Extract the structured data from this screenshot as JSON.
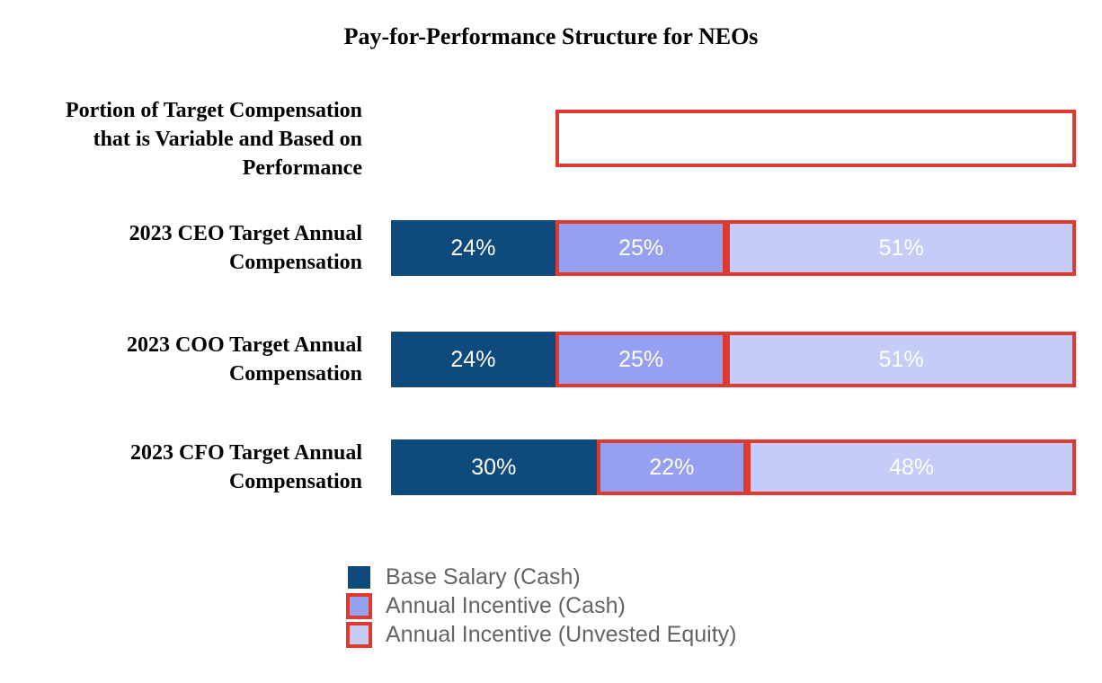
{
  "title": "Pay-for-Performance Structure for NEOs",
  "colors": {
    "navy": "#0E4A7C",
    "mid": "#95A1F0",
    "light": "#C5CCF7",
    "red": "#E03A30",
    "legendText": "#636363"
  },
  "annotation_row": {
    "label_lines": [
      "Portion of Target Compensation",
      "that is Variable and Based on",
      "Performance"
    ],
    "box_left_pct": 24,
    "box_width_pct": 76
  },
  "bars": [
    {
      "label_lines": [
        "2023 CEO Target Annual",
        "Compensation"
      ],
      "segments": [
        {
          "text": "24%",
          "pct": 24
        },
        {
          "text": "25%",
          "pct": 25
        },
        {
          "text": "51%",
          "pct": 51
        }
      ]
    },
    {
      "label_lines": [
        "2023 COO Target Annual",
        "Compensation"
      ],
      "segments": [
        {
          "text": "24%",
          "pct": 24
        },
        {
          "text": "25%",
          "pct": 25
        },
        {
          "text": "51%",
          "pct": 51
        }
      ]
    },
    {
      "label_lines": [
        "2023 CFO Target Annual",
        "Compensation"
      ],
      "segments": [
        {
          "text": "30%",
          "pct": 30
        },
        {
          "text": "22%",
          "pct": 22
        },
        {
          "text": "48%",
          "pct": 48
        }
      ]
    }
  ],
  "legend": {
    "items": [
      {
        "label": "Base Salary (Cash)"
      },
      {
        "label": "Annual Incentive (Cash)"
      },
      {
        "label": "Annual Incentive (Unvested Equity)"
      }
    ]
  },
  "chart_data": {
    "type": "bar",
    "orientation": "horizontal-stacked",
    "title": "Pay-for-Performance Structure for NEOs",
    "categories": [
      "2023 CEO Target Annual Compensation",
      "2023 COO Target Annual Compensation",
      "2023 CFO Target Annual Compensation"
    ],
    "series": [
      {
        "name": "Base Salary (Cash)",
        "values": [
          24,
          24,
          30
        ],
        "color": "#0E4A7C"
      },
      {
        "name": "Annual Incentive (Cash)",
        "values": [
          25,
          25,
          22
        ],
        "color": "#95A1F0",
        "outline": "#E03A30"
      },
      {
        "name": "Annual Incentive (Unvested Equity)",
        "values": [
          51,
          51,
          48
        ],
        "color": "#C5CCF7",
        "outline": "#E03A30"
      }
    ],
    "annotation": {
      "label": "Portion of Target Compensation that is Variable and Based on Performance",
      "highlight_range_pct": [
        24,
        100
      ],
      "style": "empty red-outlined box"
    },
    "value_labels": "percent-inside-white",
    "xlim": [
      0,
      100
    ],
    "grid": false,
    "legend_position": "bottom-left"
  }
}
